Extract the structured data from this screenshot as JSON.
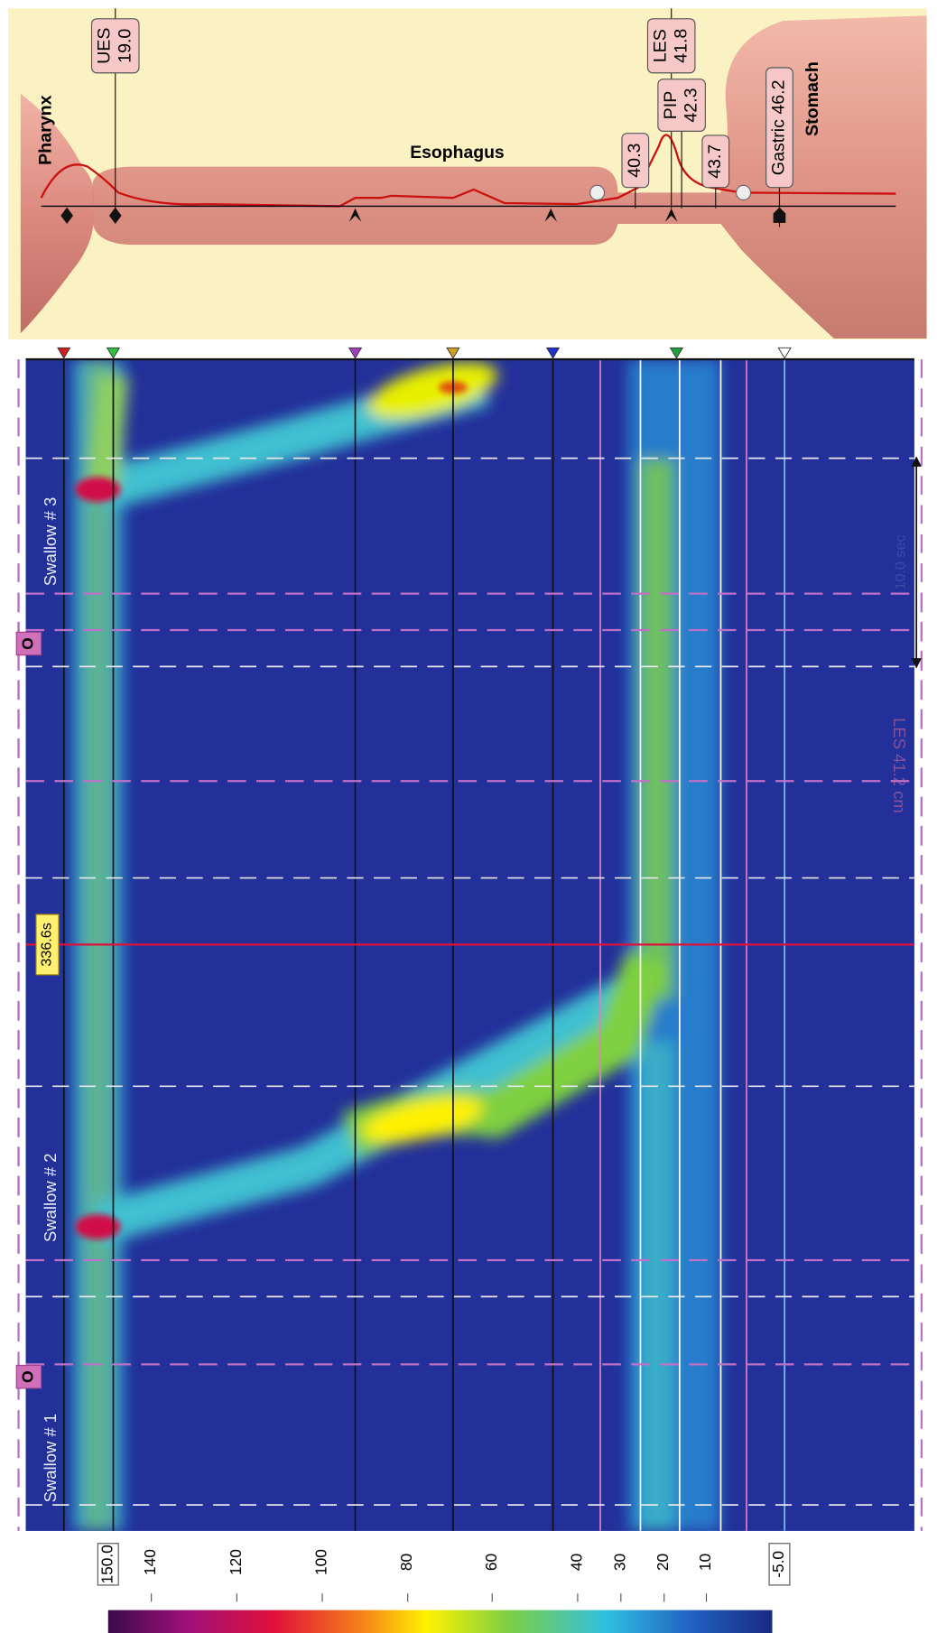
{
  "diagram": {
    "regions": {
      "pharynx": "Pharynx",
      "esophagus": "Esophagus",
      "stomach": "Stomach"
    },
    "markers": [
      {
        "lines": [
          "UES",
          "19.0"
        ]
      },
      {
        "lines": [
          "LES",
          "41.8"
        ]
      },
      {
        "lines": [
          "PIP",
          "42.3"
        ]
      },
      {
        "lines": [
          "40.3"
        ]
      },
      {
        "lines": [
          "43.7"
        ]
      },
      {
        "lines": [
          "Gastric 46.2"
        ]
      }
    ]
  },
  "plot": {
    "cursor": "336.6s",
    "swallows": [
      "Swallow # 1",
      "Swallow # 2",
      "Swallow # 3"
    ],
    "event_marks": [
      "O",
      "O"
    ],
    "time_scale": "10.0 sec",
    "les_note": "LES 41.2 cm"
  },
  "colorbar": {
    "labels": [
      "150.0",
      "140",
      "120",
      "100",
      "80",
      "60",
      "40",
      "30",
      "20",
      "10",
      "-5.0"
    ]
  }
}
